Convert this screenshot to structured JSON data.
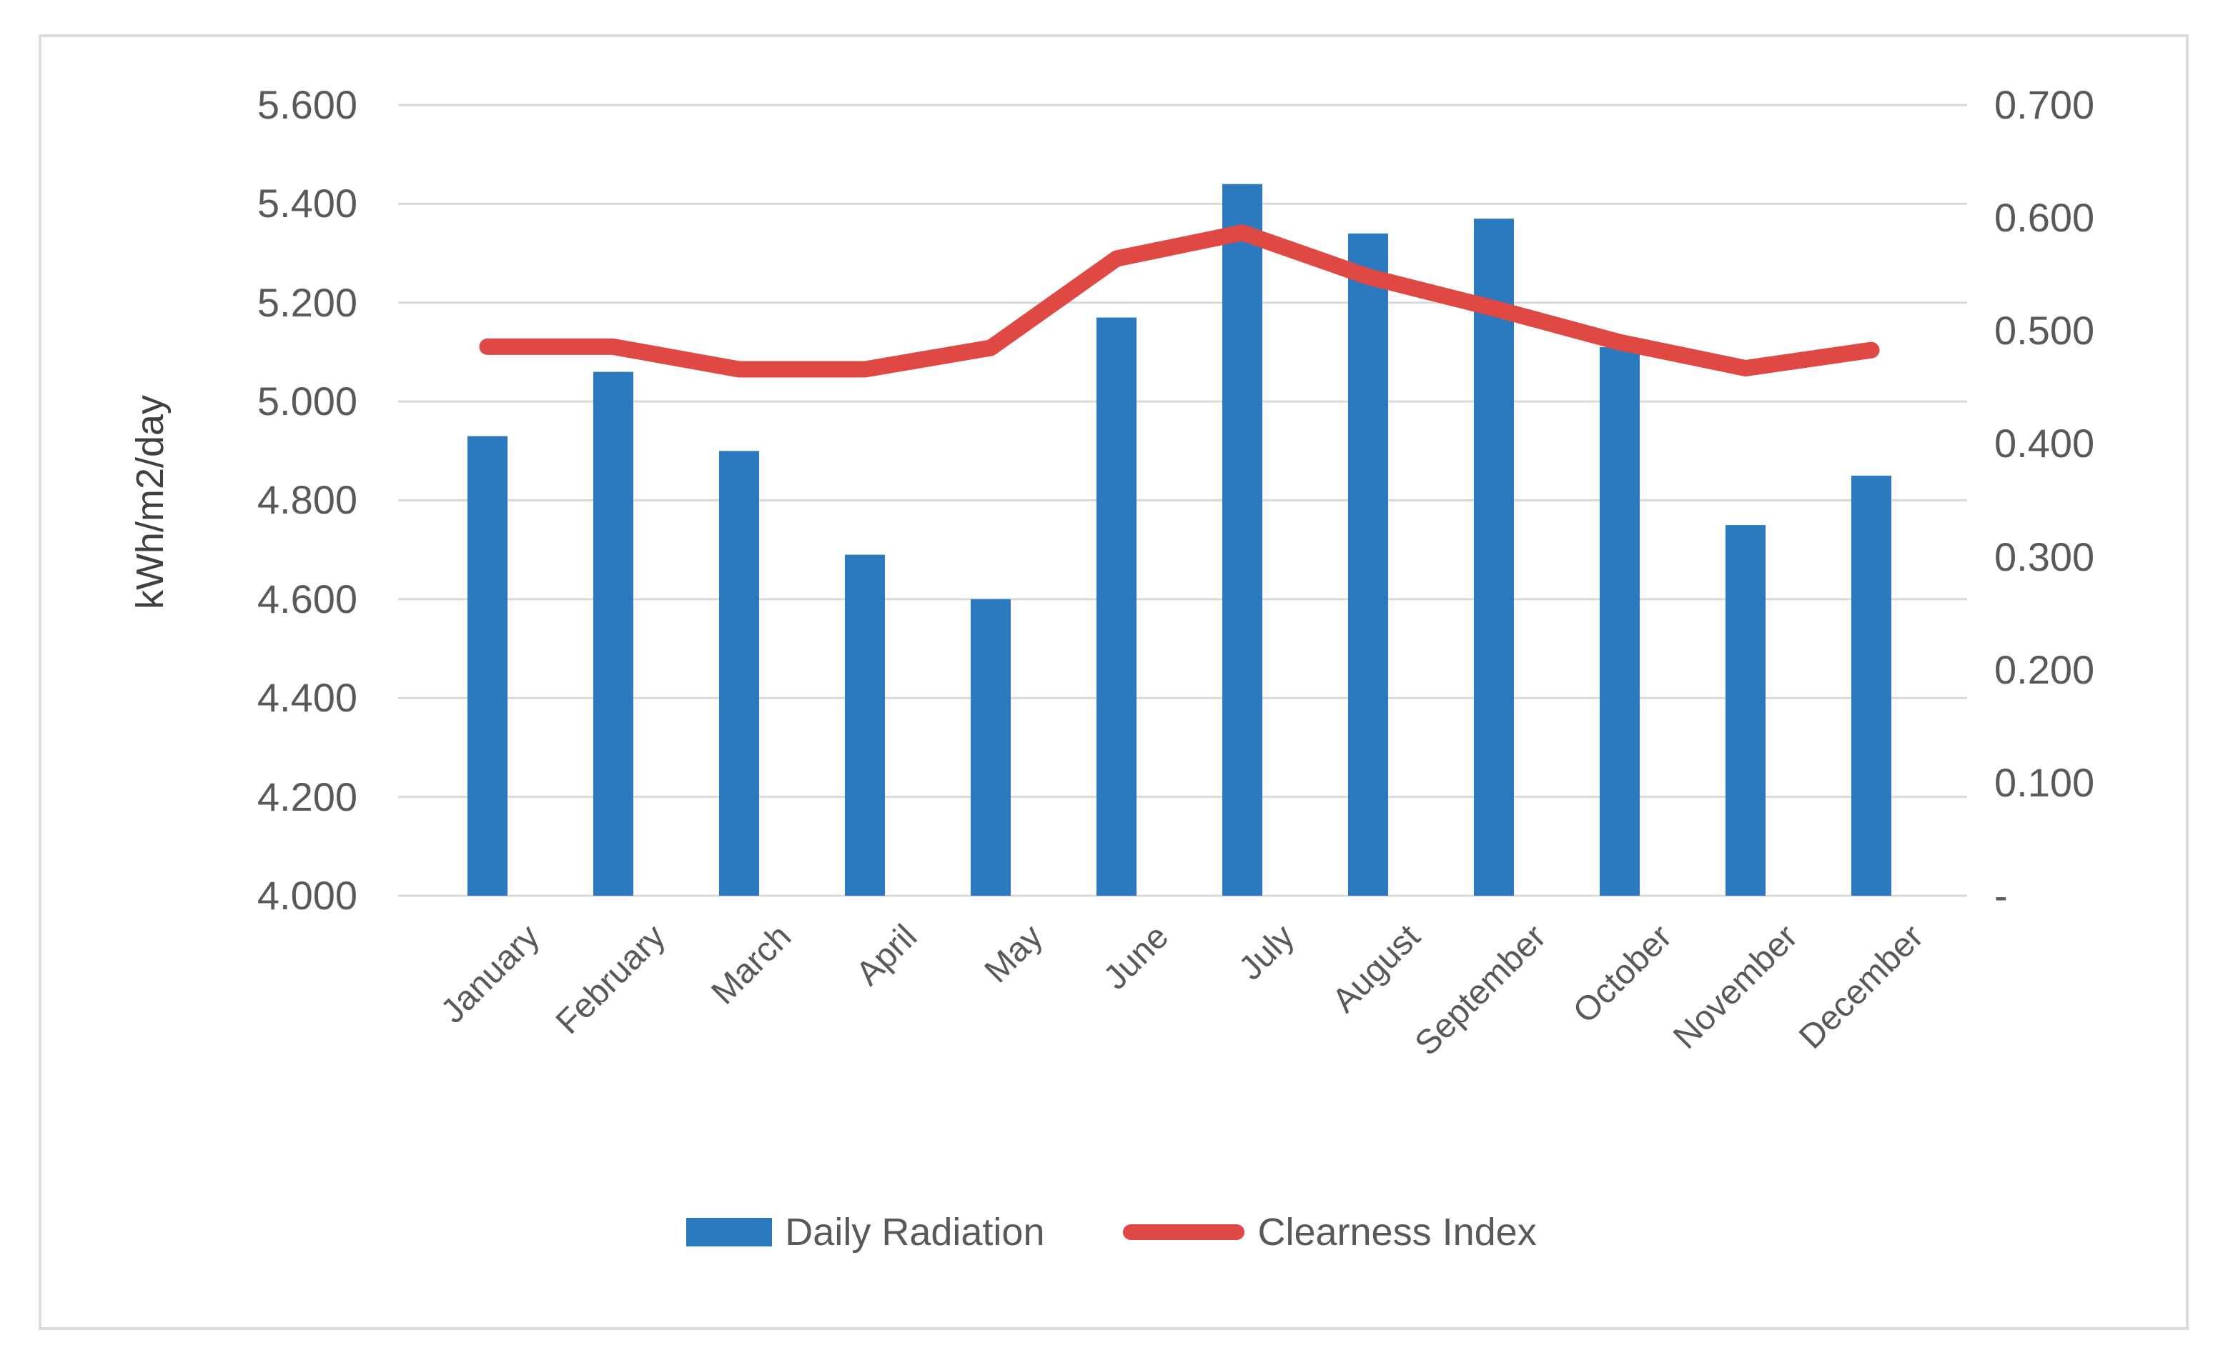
{
  "figure": {
    "background": "#FFFFFF",
    "border_color": "#DCDCDC"
  },
  "chart_data": {
    "type": "combo-bar-line",
    "categories": [
      "January",
      "February",
      "March",
      "April",
      "May",
      "June",
      "July",
      "August",
      "September",
      "October",
      "November",
      "December"
    ],
    "series": [
      {
        "name": "Daily Radiation",
        "type": "bar",
        "axis": "left",
        "color": "#2B79BE",
        "values": [
          4.93,
          5.06,
          4.9,
          4.69,
          4.6,
          5.17,
          5.44,
          5.34,
          5.37,
          5.11,
          4.75,
          4.85
        ]
      },
      {
        "name": "Clearness Index",
        "type": "line",
        "axis": "right",
        "color": "#E04843",
        "values": [
          0.486,
          0.486,
          0.466,
          0.466,
          0.485,
          0.564,
          0.587,
          0.548,
          0.52,
          0.49,
          0.467,
          0.483
        ]
      }
    ],
    "left_axis": {
      "title": "kWh/m2/day",
      "min": 4.0,
      "max": 5.6,
      "step": 0.2,
      "tick_labels": [
        "5.600",
        "5.400",
        "5.200",
        "5.000",
        "4.800",
        "4.600",
        "4.400",
        "4.200",
        "4.000"
      ]
    },
    "right_axis": {
      "min": 0.0,
      "max": 0.7,
      "step": 0.1,
      "tick_labels": [
        "0.700",
        "0.600",
        "0.500",
        "0.400",
        "0.300",
        "0.200",
        "0.100",
        "-"
      ]
    },
    "grid": true,
    "legend_position": "bottom",
    "gridline_color": "#D9D9D9",
    "text_color": "#595959"
  }
}
